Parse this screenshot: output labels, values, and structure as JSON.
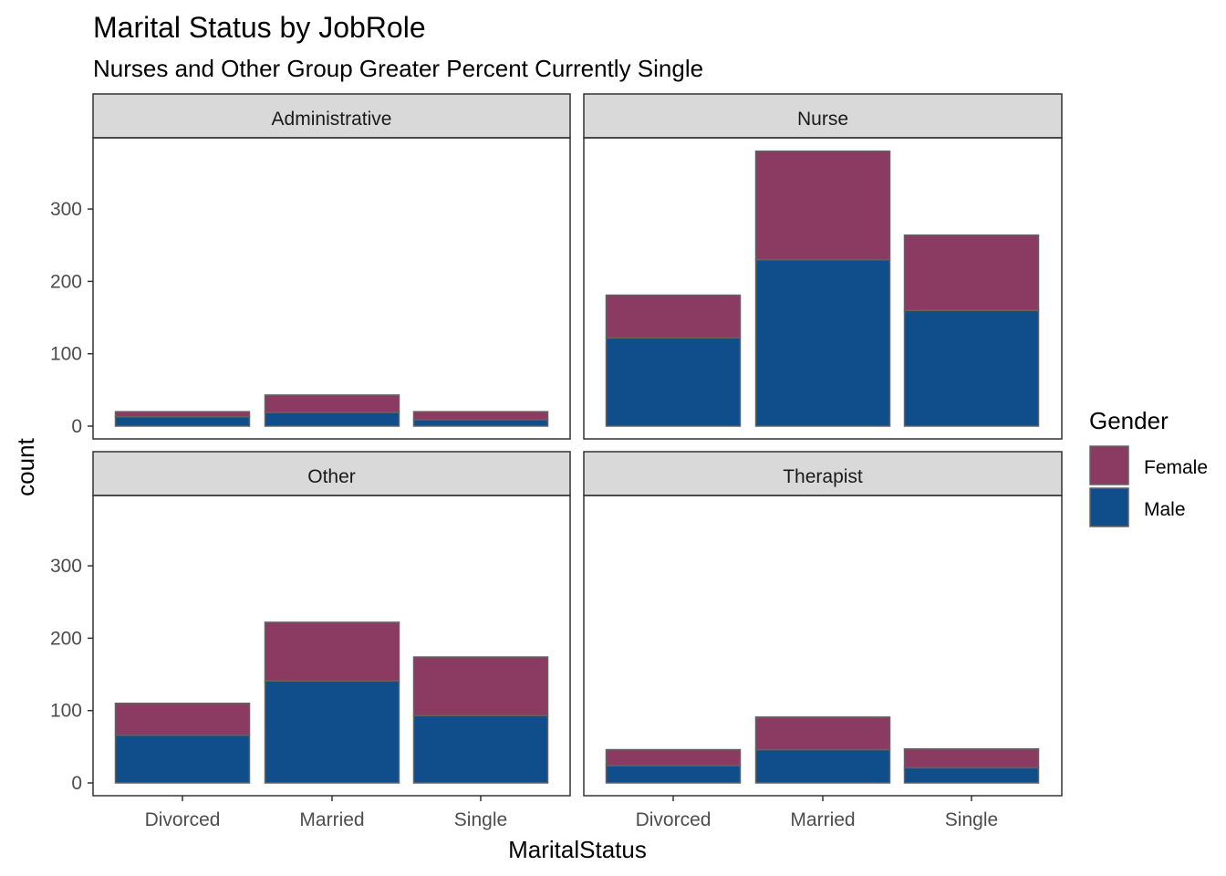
{
  "chart_data": {
    "type": "bar",
    "stacked": true,
    "title": "Marital Status by JobRole",
    "subtitle": "Nurses and Other Group Greater Percent Currently Single",
    "xlabel": "MaritalStatus",
    "ylabel": "count",
    "categories": [
      "Divorced",
      "Married",
      "Single"
    ],
    "ylim": [
      0,
      400
    ],
    "yticks": [
      0,
      100,
      200,
      300
    ],
    "legend": {
      "title": "Gender",
      "placement": "right",
      "entries": [
        "Female",
        "Male"
      ]
    },
    "colors": {
      "Female": "#8b3a62",
      "Male": "#104e8b",
      "strip_bg": "#d9d9d9",
      "border": "#333333",
      "bar_outline": "#636363"
    },
    "facets": [
      {
        "name": "Administrative",
        "series": [
          {
            "name": "Male",
            "values": [
              13,
              19,
              9
            ]
          },
          {
            "name": "Female",
            "values": [
              7,
              24,
              11
            ]
          }
        ]
      },
      {
        "name": "Nurse",
        "series": [
          {
            "name": "Male",
            "values": [
              122,
              230,
              160
            ]
          },
          {
            "name": "Female",
            "values": [
              59,
              150,
              104
            ]
          }
        ]
      },
      {
        "name": "Other",
        "series": [
          {
            "name": "Male",
            "values": [
              66,
              141,
              93
            ]
          },
          {
            "name": "Female",
            "values": [
              44,
              81,
              81
            ]
          }
        ]
      },
      {
        "name": "Therapist",
        "series": [
          {
            "name": "Male",
            "values": [
              24,
              46,
              21
            ]
          },
          {
            "name": "Female",
            "values": [
              22,
              45,
              26
            ]
          }
        ]
      }
    ]
  }
}
